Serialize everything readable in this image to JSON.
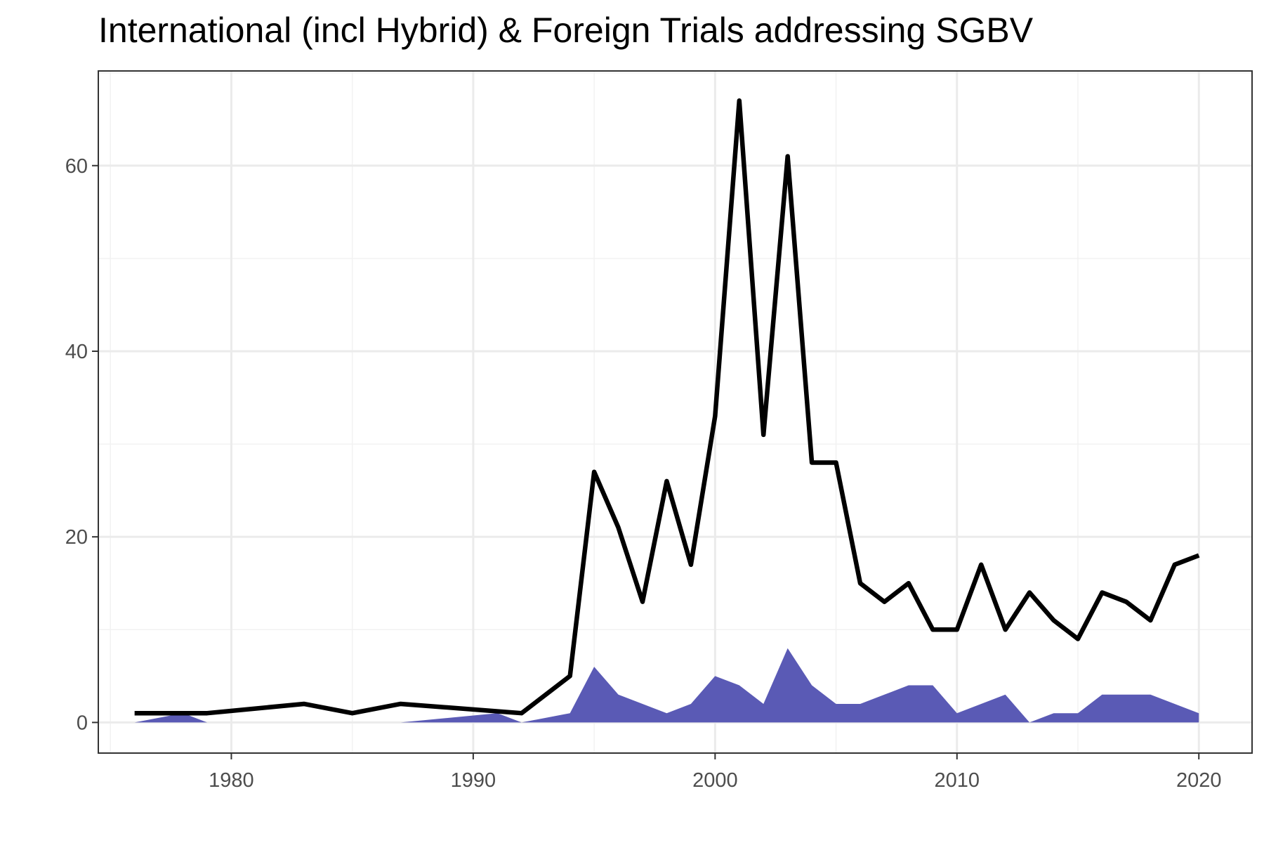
{
  "chart_data": {
    "type": "area",
    "title": "International (incl Hybrid) & Foreign Trials addressing SGBV",
    "xlabel": "",
    "ylabel": "",
    "xlim": [
      1974.5,
      2022.2
    ],
    "ylim": [
      -3.3,
      70.2
    ],
    "x_ticks": [
      1980,
      1990,
      2000,
      2010,
      2020
    ],
    "y_ticks": [
      0,
      20,
      40,
      60
    ],
    "grid": true,
    "legend": "none",
    "series": [
      {
        "kind": "line",
        "color": "#000000",
        "points": [
          [
            1976,
            1
          ],
          [
            1979,
            1
          ],
          [
            1983,
            2
          ],
          [
            1985,
            1
          ],
          [
            1987,
            2
          ],
          [
            1992,
            1
          ],
          [
            1994,
            5
          ],
          [
            1995,
            27
          ],
          [
            1996,
            21
          ],
          [
            1997,
            13
          ],
          [
            1998,
            26
          ],
          [
            1999,
            17
          ],
          [
            2000,
            33
          ],
          [
            2001,
            67
          ],
          [
            2002,
            31
          ],
          [
            2003,
            61
          ],
          [
            2004,
            28
          ],
          [
            2005,
            28
          ],
          [
            2006,
            15
          ],
          [
            2007,
            13
          ],
          [
            2008,
            15
          ],
          [
            2009,
            10
          ],
          [
            2010,
            10
          ],
          [
            2011,
            17
          ],
          [
            2012,
            10
          ],
          [
            2013,
            14
          ],
          [
            2014,
            11
          ],
          [
            2015,
            9
          ],
          [
            2016,
            14
          ],
          [
            2017,
            13
          ],
          [
            2018,
            11
          ],
          [
            2019,
            17
          ],
          [
            2020,
            18
          ]
        ]
      },
      {
        "kind": "area",
        "color": "#5a5ab5",
        "segments": [
          [
            [
              1976,
              0
            ],
            [
              1978,
              1
            ],
            [
              1979,
              0
            ]
          ],
          [
            [
              1987,
              0
            ],
            [
              1991,
              1
            ],
            [
              1992,
              0
            ],
            [
              1994,
              1
            ],
            [
              1995,
              6
            ],
            [
              1996,
              3
            ],
            [
              1997,
              2
            ],
            [
              1998,
              1
            ],
            [
              1999,
              2
            ],
            [
              2000,
              5
            ],
            [
              2001,
              4
            ],
            [
              2002,
              2
            ],
            [
              2003,
              8
            ],
            [
              2004,
              4
            ],
            [
              2005,
              2
            ],
            [
              2006,
              2
            ],
            [
              2007,
              3
            ],
            [
              2008,
              4
            ],
            [
              2009,
              4
            ],
            [
              2010,
              1
            ],
            [
              2011,
              2
            ],
            [
              2012,
              3
            ],
            [
              2013,
              0
            ]
          ],
          [
            [
              2013,
              0
            ],
            [
              2014,
              1
            ],
            [
              2015,
              1
            ],
            [
              2016,
              3
            ],
            [
              2017,
              3
            ],
            [
              2018,
              3
            ],
            [
              2019,
              2
            ],
            [
              2020,
              1
            ]
          ]
        ]
      }
    ]
  }
}
